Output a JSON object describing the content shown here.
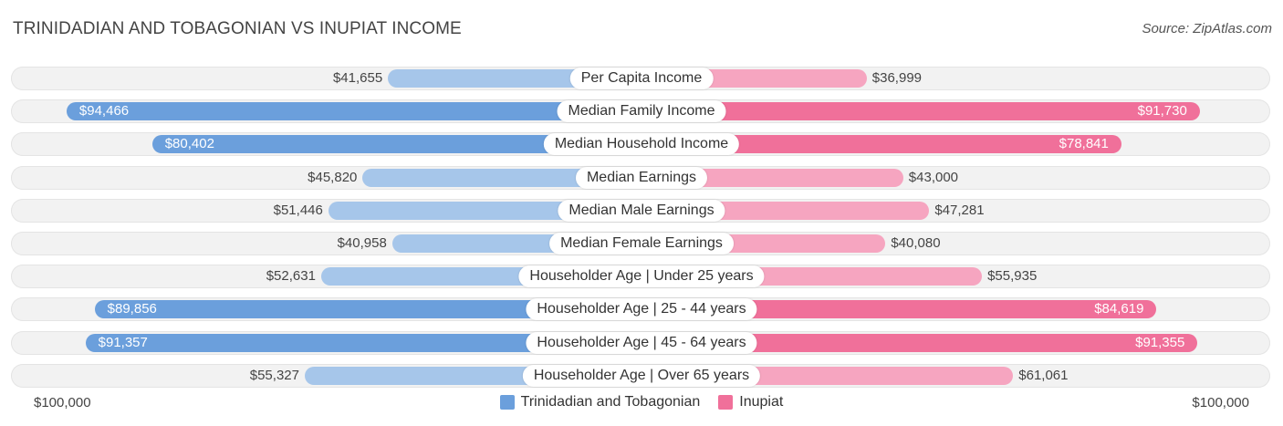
{
  "title": "TRINIDADIAN AND TOBAGONIAN VS INUPIAT INCOME",
  "source": "Source: ZipAtlas.com",
  "chart_data": {
    "type": "bar",
    "orientation": "horizontal-diverging",
    "categories": [
      "Per Capita Income",
      "Median Family Income",
      "Median Household Income",
      "Median Earnings",
      "Median Male Earnings",
      "Median Female Earnings",
      "Householder Age | Under 25 years",
      "Householder Age | 25 - 44 years",
      "Householder Age | 45 - 64 years",
      "Householder Age | Over 65 years"
    ],
    "series": [
      {
        "name": "Trinidadian and Tobagonian",
        "side": "left",
        "color": "#6b9fdc",
        "color_light": "#a6c6ea",
        "values": [
          41655,
          94466,
          80402,
          45820,
          51446,
          40958,
          52631,
          89856,
          91357,
          55327
        ],
        "labels": [
          "$41,655",
          "$94,466",
          "$80,402",
          "$45,820",
          "$51,446",
          "$40,958",
          "$52,631",
          "$89,856",
          "$91,357",
          "$55,327"
        ]
      },
      {
        "name": "Inupiat",
        "side": "right",
        "color": "#f0709a",
        "color_light": "#f6a5c0",
        "values": [
          36999,
          91730,
          78841,
          43000,
          47281,
          40080,
          55935,
          84619,
          91355,
          61061
        ],
        "labels": [
          "$36,999",
          "$91,730",
          "$78,841",
          "$43,000",
          "$47,281",
          "$40,080",
          "$55,935",
          "$84,619",
          "$91,355",
          "$61,061"
        ]
      }
    ],
    "xlim": [
      0,
      100000
    ],
    "axis_left_label": "$100,000",
    "axis_right_label": "$100,000",
    "legend_position": "bottom-center",
    "grid": false
  }
}
